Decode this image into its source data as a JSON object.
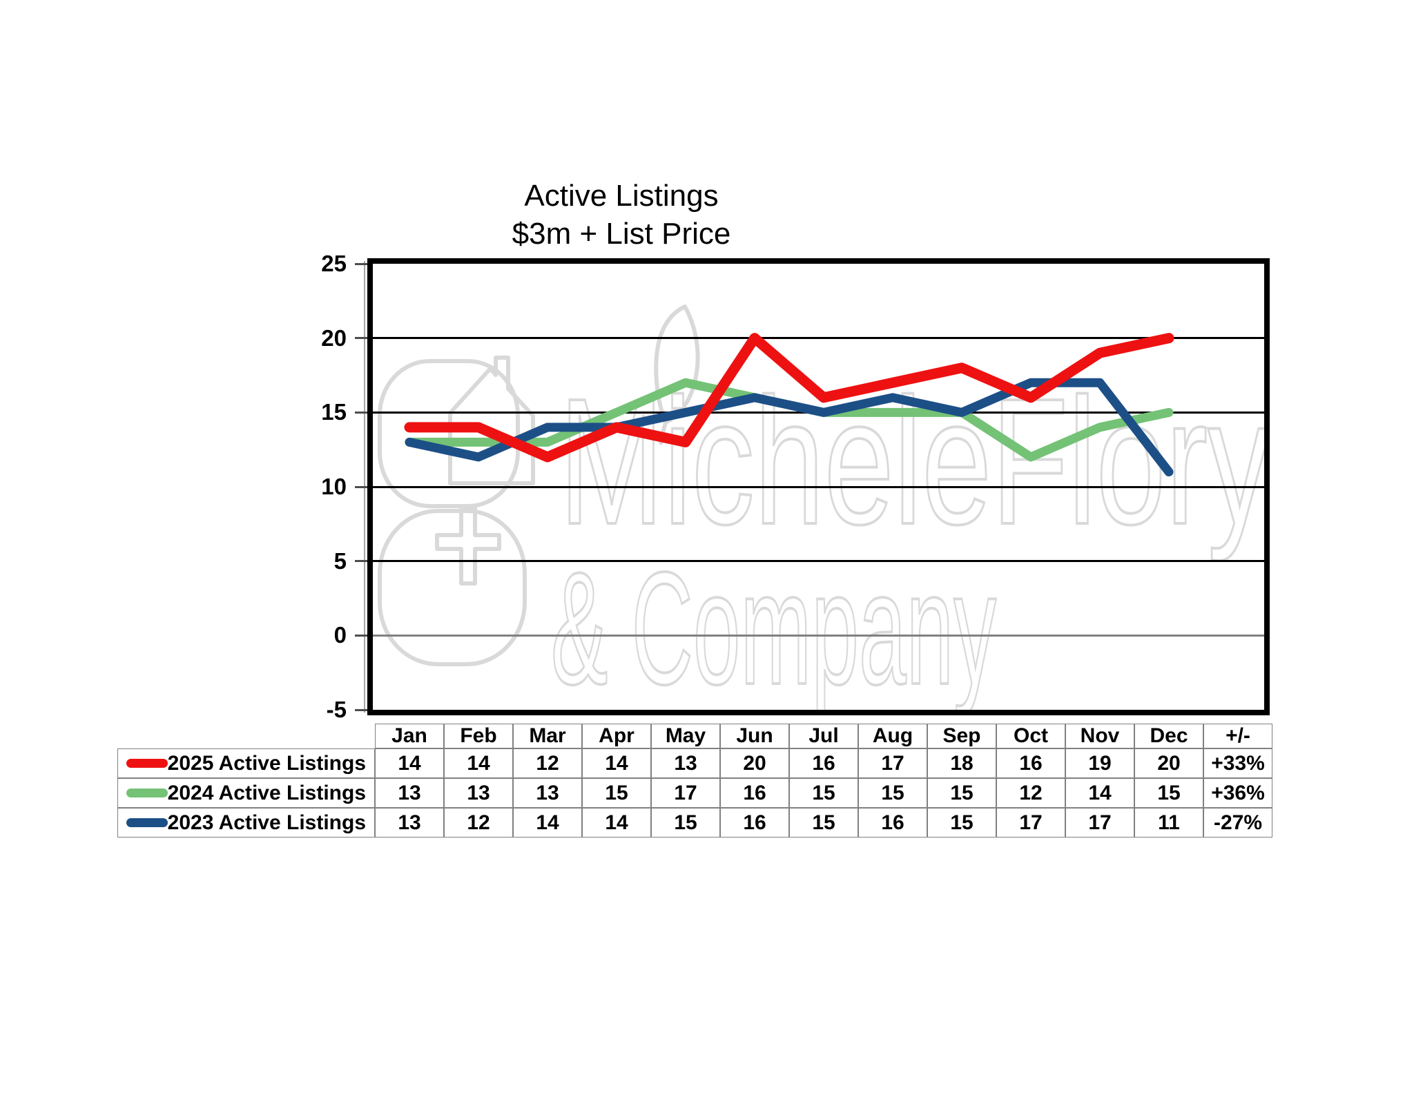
{
  "title": {
    "line1": "Active Listings",
    "line2": "$3m + List Price"
  },
  "watermark": {
    "line1": "MicheleFlory",
    "line2": "& Company"
  },
  "colors": {
    "red": "#EE1111",
    "green": "#74C276",
    "blue": "#1D4F87",
    "gridline": "#000000",
    "zero_axis": "#808080",
    "table_border": "#808080",
    "watermark": "#D9D9D9"
  },
  "chart_data": {
    "type": "line",
    "title": "Active Listings $3m + List Price",
    "categories": [
      "Jan",
      "Feb",
      "Mar",
      "Apr",
      "May",
      "Jun",
      "Jul",
      "Aug",
      "Sep",
      "Oct",
      "Nov",
      "Dec"
    ],
    "extra_column_header": "+/-",
    "y_ticks": [
      25,
      20,
      15,
      10,
      5,
      0,
      -5
    ],
    "ylim": [
      -5,
      25
    ],
    "grid": "horizontal-only",
    "legend_position": "table-left",
    "series": [
      {
        "name": "2025 Active Listings",
        "color_key": "red",
        "values": [
          14,
          14,
          12,
          14,
          13,
          20,
          16,
          17,
          18,
          16,
          19,
          20
        ],
        "change": "+33%"
      },
      {
        "name": "2024 Active Listings",
        "color_key": "green",
        "values": [
          13,
          13,
          13,
          15,
          17,
          16,
          15,
          15,
          15,
          12,
          14,
          15
        ],
        "change": "+36%"
      },
      {
        "name": "2023 Active Listings",
        "color_key": "blue",
        "values": [
          13,
          12,
          14,
          14,
          15,
          16,
          15,
          16,
          15,
          17,
          17,
          11
        ],
        "change": "-27%"
      }
    ]
  }
}
